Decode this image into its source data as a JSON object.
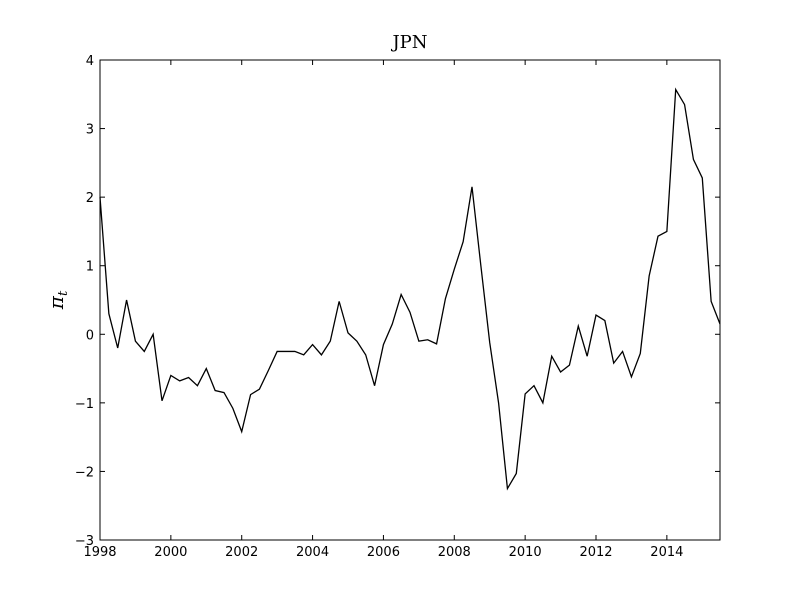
{
  "chart_data": {
    "type": "line",
    "title": "JPN",
    "xlabel": "",
    "ylabel": "π",
    "ylabel_subscript": "t",
    "xlim": [
      1998,
      2015.5
    ],
    "ylim": [
      -3,
      4
    ],
    "x_ticks": [
      1998,
      2000,
      2002,
      2004,
      2006,
      2008,
      2010,
      2012,
      2014
    ],
    "y_ticks": [
      -3,
      -2,
      -1,
      0,
      1,
      2,
      3,
      4
    ],
    "x_tick_labels": [
      "1998",
      "2000",
      "2002",
      "2004",
      "2006",
      "2008",
      "2010",
      "2012",
      "2014"
    ],
    "y_tick_labels": [
      "−3",
      "−2",
      "−1",
      "0",
      "1",
      "2",
      "3",
      "4"
    ],
    "grid": false,
    "line_color": "#000000",
    "series": [
      {
        "x": [
          1998.0,
          1998.25,
          1998.5,
          1998.75,
          1999.0,
          1999.25,
          1999.5,
          1999.75,
          2000.0,
          2000.25,
          2000.5,
          2000.75,
          2001.0,
          2001.25,
          2001.5,
          2001.75,
          2002.0,
          2002.25,
          2002.5,
          2002.75,
          2003.0,
          2003.25,
          2003.5,
          2003.75,
          2004.0,
          2004.25,
          2004.5,
          2004.75,
          2005.0,
          2005.25,
          2005.5,
          2005.75,
          2006.0,
          2006.25,
          2006.5,
          2006.75,
          2007.0,
          2007.25,
          2007.5,
          2007.75,
          2008.0,
          2008.25,
          2008.5,
          2008.75,
          2009.0,
          2009.25,
          2009.5,
          2009.75,
          2010.0,
          2010.25,
          2010.5,
          2010.75,
          2011.0,
          2011.25,
          2011.5,
          2011.75,
          2012.0,
          2012.25,
          2012.5,
          2012.75,
          2013.0,
          2013.25,
          2013.5,
          2013.75,
          2014.0,
          2014.25,
          2014.5,
          2014.75,
          2015.0,
          2015.25,
          2015.5
        ],
        "values": [
          2.0,
          0.3,
          -0.2,
          0.5,
          -0.1,
          -0.25,
          0.0,
          -0.97,
          -0.6,
          -0.68,
          -0.63,
          -0.75,
          -0.5,
          -0.82,
          -0.85,
          -1.08,
          -1.42,
          -0.88,
          -0.8,
          -0.53,
          -0.25,
          -0.25,
          -0.25,
          -0.3,
          -0.15,
          -0.3,
          -0.1,
          0.48,
          0.02,
          -0.1,
          -0.3,
          -0.75,
          -0.15,
          0.15,
          0.58,
          0.32,
          -0.1,
          -0.08,
          -0.14,
          0.52,
          0.95,
          1.35,
          2.15,
          1.0,
          -0.12,
          -1.0,
          -2.25,
          -2.03,
          -0.87,
          -0.75,
          -1.0,
          -0.32,
          -0.55,
          -0.45,
          0.12,
          -0.32,
          0.28,
          0.2,
          -0.42,
          -0.25,
          -0.62,
          -0.28,
          0.85,
          1.43,
          1.5,
          3.57,
          3.35,
          2.55,
          2.28,
          0.48,
          0.15
        ]
      }
    ]
  }
}
